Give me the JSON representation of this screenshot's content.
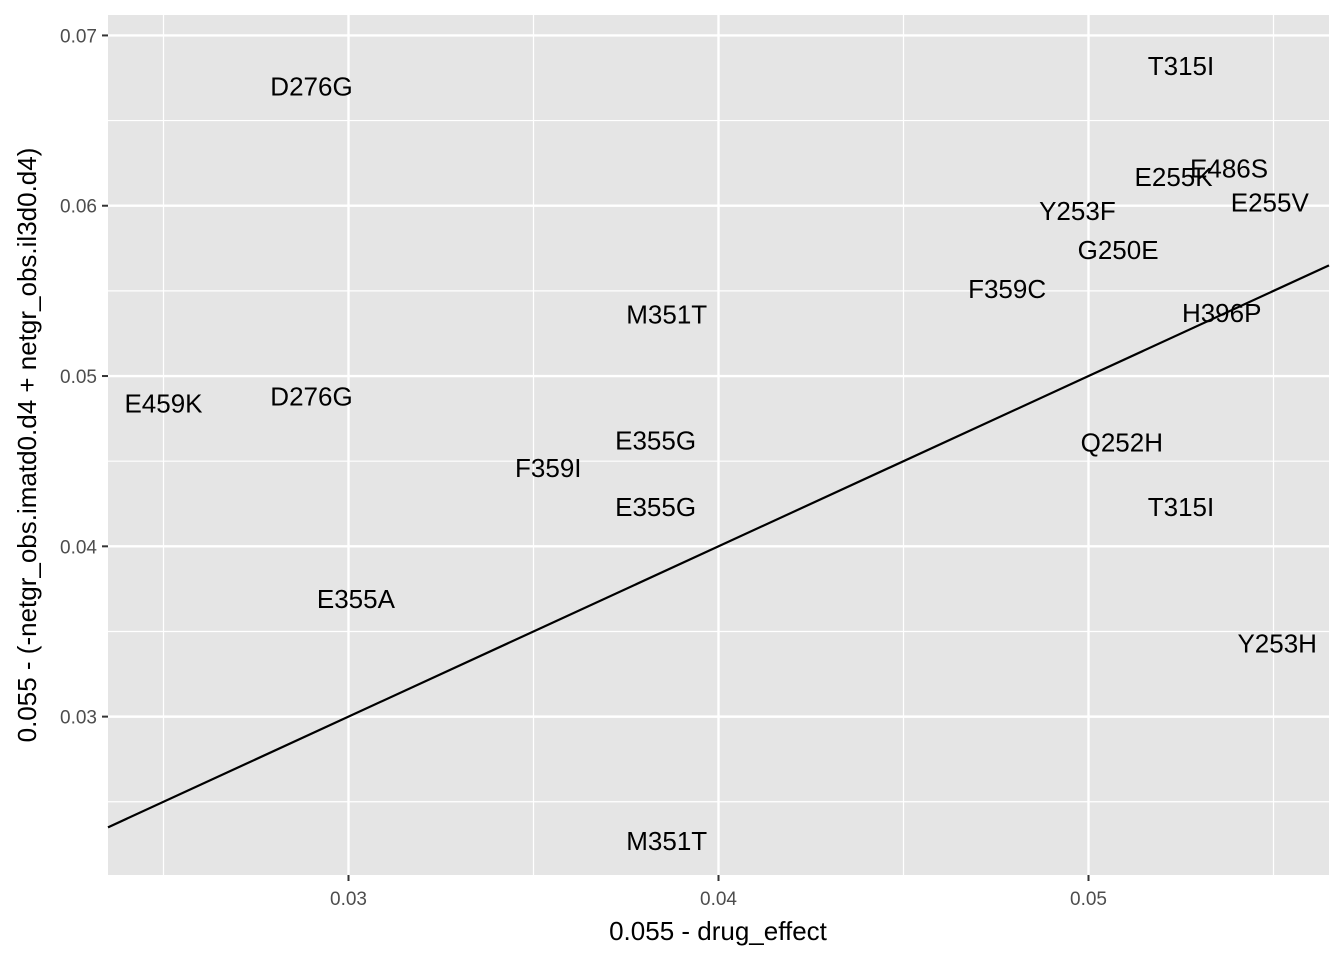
{
  "chart_data": {
    "type": "scatter",
    "title": "",
    "xlabel": "0.055 - drug_effect",
    "ylabel": "0.055 - (-netgr_obs.imatd0.d4 + netgr_obs.il3d0.d4)",
    "xlim": [
      0.0235,
      0.0565
    ],
    "ylim": [
      0.0207,
      0.0712
    ],
    "x_ticks": [
      0.03,
      0.04,
      0.05
    ],
    "y_ticks": [
      0.03,
      0.04,
      0.05,
      0.06,
      0.07
    ],
    "x_tick_labels": [
      "0.03",
      "0.04",
      "0.05"
    ],
    "y_tick_labels": [
      "0.03",
      "0.04",
      "0.05",
      "0.06",
      "0.07"
    ],
    "grid": true,
    "legend": "none",
    "points": [
      {
        "label": "D276G",
        "x": 0.029,
        "y": 0.067
      },
      {
        "label": "T315I",
        "x": 0.0525,
        "y": 0.0682
      },
      {
        "label": "E486S",
        "x": 0.0538,
        "y": 0.0622
      },
      {
        "label": "E255K",
        "x": 0.0523,
        "y": 0.0617
      },
      {
        "label": "E255V",
        "x": 0.0549,
        "y": 0.0602
      },
      {
        "label": "Y253F",
        "x": 0.0497,
        "y": 0.0597
      },
      {
        "label": "G250E",
        "x": 0.0508,
        "y": 0.0574
      },
      {
        "label": "F359C",
        "x": 0.0478,
        "y": 0.0551
      },
      {
        "label": "M351T",
        "x": 0.0386,
        "y": 0.0536
      },
      {
        "label": "H396P",
        "x": 0.0536,
        "y": 0.0537
      },
      {
        "label": "E459K",
        "x": 0.025,
        "y": 0.0484
      },
      {
        "label": "D276G",
        "x": 0.029,
        "y": 0.0488
      },
      {
        "label": "E355G",
        "x": 0.0383,
        "y": 0.0462
      },
      {
        "label": "Q252H",
        "x": 0.0509,
        "y": 0.0461
      },
      {
        "label": "F359I",
        "x": 0.0354,
        "y": 0.0446
      },
      {
        "label": "E355G",
        "x": 0.0383,
        "y": 0.0423
      },
      {
        "label": "T315I",
        "x": 0.0525,
        "y": 0.0423
      },
      {
        "label": "E355A",
        "x": 0.0302,
        "y": 0.0369
      },
      {
        "label": "Y253H",
        "x": 0.0551,
        "y": 0.0343
      },
      {
        "label": "M351T",
        "x": 0.0386,
        "y": 0.0227
      }
    ],
    "reference_line": {
      "intercept": 0,
      "slope": 1
    }
  }
}
